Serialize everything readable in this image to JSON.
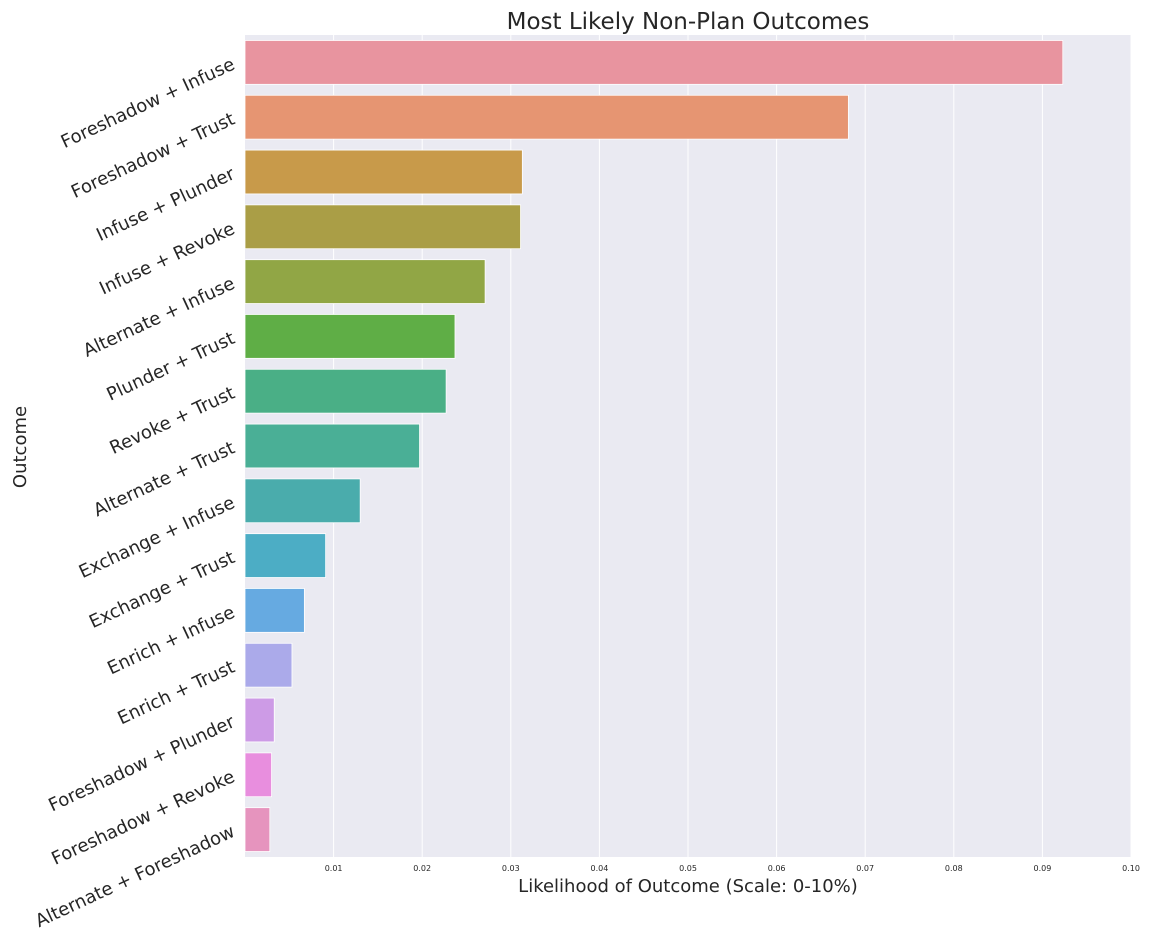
{
  "chart_data": {
    "type": "bar",
    "orientation": "horizontal",
    "title": "Most Likely Non-Plan Outcomes",
    "xlabel": "Likelihood of Outcome (Scale: 0-10%)",
    "ylabel": "Outcome",
    "xlim": [
      0,
      0.1
    ],
    "xticks": [
      "0.01",
      "0.02",
      "0.03",
      "0.04",
      "0.05",
      "0.06",
      "0.07",
      "0.08",
      "0.09",
      "0.10"
    ],
    "xtick_values": [
      0.01,
      0.02,
      0.03,
      0.04,
      0.05,
      0.06,
      0.07,
      0.08,
      0.09,
      0.1
    ],
    "grid": true,
    "categories": [
      "Foreshadow + Infuse",
      "Foreshadow + Trust",
      "Infuse + Plunder",
      "Infuse + Revoke",
      "Alternate + Infuse",
      "Plunder + Trust",
      "Revoke + Trust",
      "Alternate + Trust",
      "Exchange + Infuse",
      "Exchange + Trust",
      "Enrich + Infuse",
      "Enrich + Trust",
      "Foreshadow + Plunder",
      "Foreshadow + Revoke",
      "Alternate + Foreshadow"
    ],
    "values": [
      0.0923,
      0.0681,
      0.0313,
      0.0311,
      0.0271,
      0.0237,
      0.0227,
      0.0197,
      0.013,
      0.0091,
      0.0067,
      0.0053,
      0.0033,
      0.003,
      0.0028
    ],
    "colors": [
      "#e8949f",
      "#e69572",
      "#c89a4a",
      "#aa9e46",
      "#91a645",
      "#5fae46",
      "#4aaf86",
      "#4aaf96",
      "#4aacac",
      "#4cadc5",
      "#66aae1",
      "#abaaea",
      "#cd9be6",
      "#e88ede",
      "#e694be"
    ]
  },
  "colors": {
    "plot_background": "#eaeaf2",
    "grid": "#ffffff",
    "text": "#262626"
  }
}
